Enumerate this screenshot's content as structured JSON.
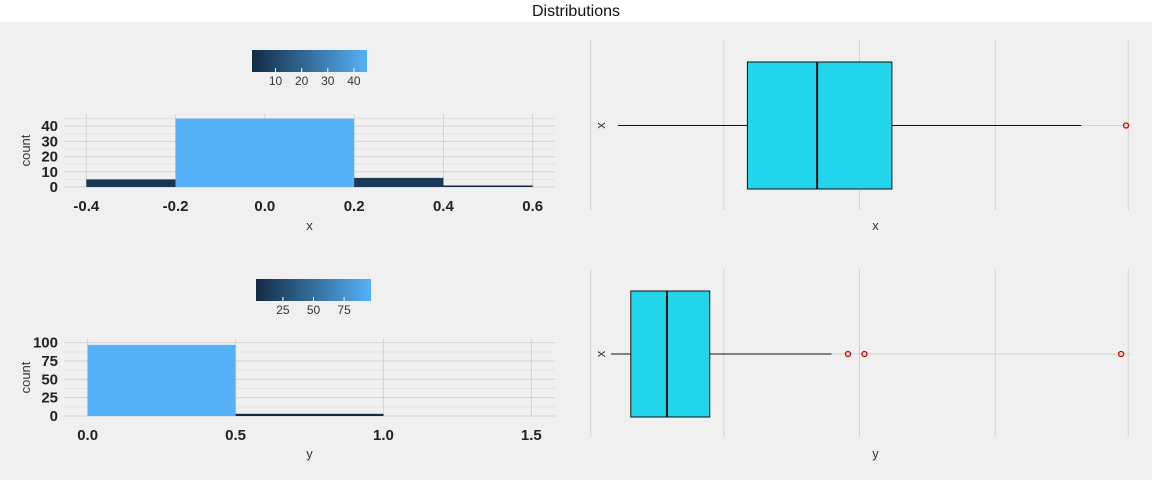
{
  "figure": {
    "title": "Distributions"
  },
  "chart_data": [
    {
      "type": "bar",
      "chart": "histogram",
      "variable": "x",
      "bins": [
        {
          "start": -0.4,
          "end": -0.2,
          "count": 5
        },
        {
          "start": -0.2,
          "end": 0.2,
          "count": 45
        },
        {
          "start": 0.2,
          "end": 0.4,
          "count": 6
        },
        {
          "start": 0.4,
          "end": 0.6,
          "count": 1
        }
      ],
      "xlabel": "x",
      "ylabel": "count",
      "xlim": [
        -0.45,
        0.65
      ],
      "ylim": [
        0,
        48
      ],
      "x_ticks": [
        -0.4,
        -0.2,
        0.0,
        0.2,
        0.4,
        0.6
      ],
      "x_tick_labels": [
        "-0.4",
        "-0.2",
        "0.0",
        "0.2",
        "0.4",
        "0.6"
      ],
      "y_ticks": [
        0,
        10,
        20,
        30,
        40
      ],
      "y_tick_labels": [
        "0",
        "10",
        "20",
        "30",
        "40"
      ],
      "grid": true,
      "legend": {
        "placement": "top",
        "type": "colorbar",
        "title": "",
        "range": [
          1,
          45
        ],
        "ticks": [
          10,
          20,
          30,
          40
        ],
        "tick_labels": [
          "10",
          "20",
          "30",
          "40"
        ],
        "low_color": "#132b43",
        "high_color": "#56b1f7"
      }
    },
    {
      "type": "box",
      "variable": "x",
      "orientation": "horizontal",
      "category": "x",
      "xlabel": "x",
      "xlim": [
        -0.46,
        0.63
      ],
      "stats": {
        "whisker_low": -0.4,
        "q1": -0.14,
        "median": 0.0,
        "q3": 0.15,
        "whisker_high": 0.53
      },
      "outliers": [
        0.62
      ],
      "grid": true,
      "box_color": "#22d5ea",
      "outlier_color": "#cc0000"
    },
    {
      "type": "bar",
      "chart": "histogram",
      "variable": "y",
      "bins": [
        {
          "start": 0.0,
          "end": 0.5,
          "count": 97
        },
        {
          "start": 0.5,
          "end": 1.0,
          "count": 3
        }
      ],
      "xlabel": "y",
      "ylabel": "count",
      "xlim": [
        -0.08,
        1.58
      ],
      "ylim": [
        0,
        105
      ],
      "x_ticks": [
        0.0,
        0.5,
        1.0,
        1.5
      ],
      "x_tick_labels": [
        "0.0",
        "0.5",
        "1.0",
        "1.5"
      ],
      "y_ticks": [
        0,
        25,
        50,
        75,
        100
      ],
      "y_tick_labels": [
        "0",
        "25",
        "50",
        "75",
        "100"
      ],
      "grid": true,
      "legend": {
        "placement": "top",
        "type": "colorbar",
        "title": "",
        "range": [
          3,
          97
        ],
        "ticks": [
          25,
          50,
          75
        ],
        "tick_labels": [
          "25",
          "50",
          "75"
        ],
        "low_color": "#132b43",
        "high_color": "#56b1f7"
      }
    },
    {
      "type": "box",
      "variable": "y",
      "orientation": "horizontal",
      "category": "x",
      "xlabel": "y",
      "xlim": [
        -0.07,
        1.58
      ],
      "stats": {
        "whisker_low": 0.0,
        "q1": 0.06,
        "median": 0.17,
        "q3": 0.3,
        "whisker_high": 0.67
      },
      "outliers": [
        0.72,
        0.77,
        1.55
      ],
      "grid": true,
      "box_color": "#22d5ea",
      "outlier_color": "#cc0000"
    }
  ]
}
